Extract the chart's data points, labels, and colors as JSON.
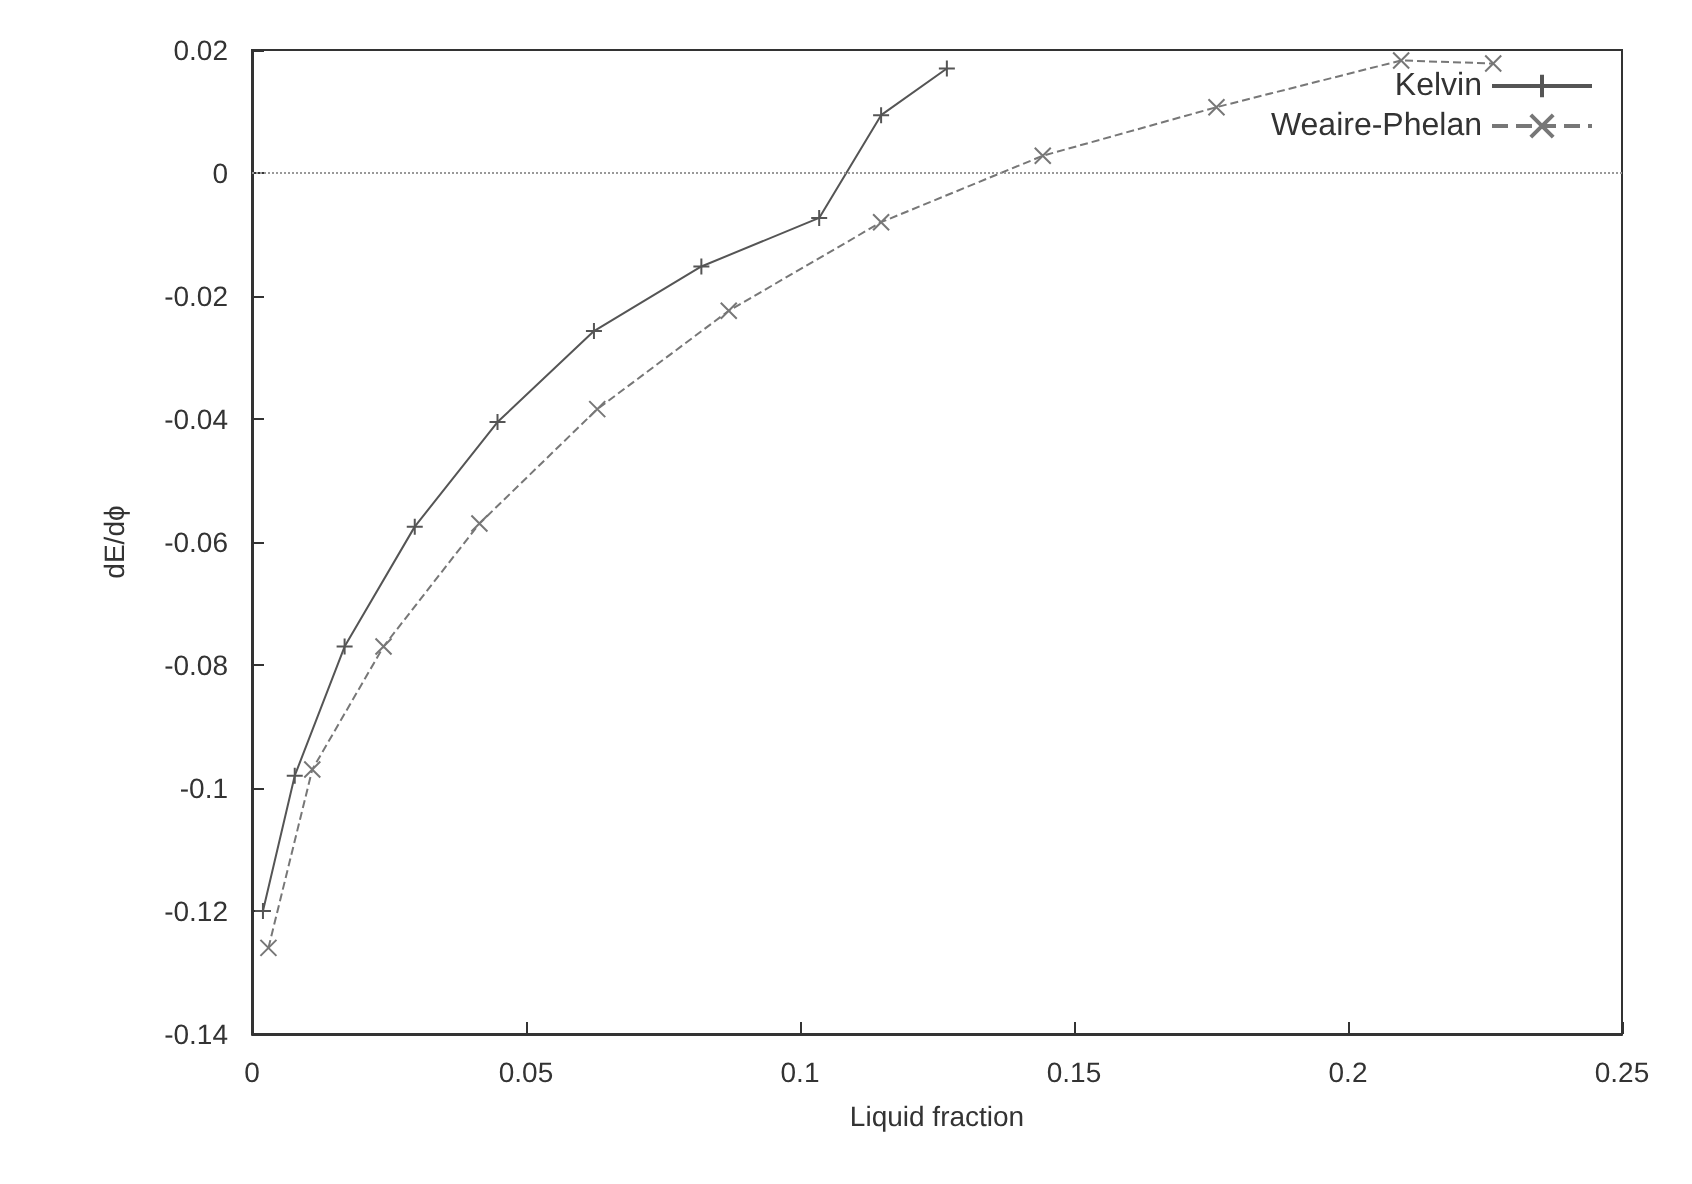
{
  "chart_data": {
    "type": "line",
    "xlabel": "Liquid fraction",
    "ylabel": "dE/dϕ",
    "xlim": [
      0,
      0.25
    ],
    "xticks": [
      0,
      0.05,
      0.1,
      0.15,
      0.2,
      0.25
    ],
    "ylim": [
      -0.14,
      0.02
    ],
    "yticks": [
      -0.14,
      -0.12,
      -0.1,
      -0.08,
      -0.06,
      -0.04,
      -0.02,
      0,
      0.02
    ],
    "grid": false,
    "legend": "top right",
    "series": [
      {
        "name": "Kelvin",
        "color": "#555555",
        "marker": "cross",
        "line_style": "solid",
        "x": [
          0.002,
          0.0078,
          0.0169,
          0.0297,
          0.0448,
          0.0624,
          0.082,
          0.1035,
          0.1148,
          0.1268
        ],
        "values": [
          -0.12,
          -0.098,
          -0.077,
          -0.0575,
          -0.0405,
          -0.0257,
          -0.0152,
          -0.0073,
          0.0094,
          0.017
        ]
      },
      {
        "name": "Weaire-Phelan",
        "color": "#777777",
        "marker": "x",
        "line_style": "dashed",
        "x": [
          0.003,
          0.011,
          0.024,
          0.0415,
          0.063,
          0.087,
          0.1148,
          0.1443,
          0.176,
          0.2097,
          0.2265
        ],
        "values": [
          -0.126,
          -0.097,
          -0.077,
          -0.057,
          -0.0384,
          -0.0224,
          -0.008,
          0.0028,
          0.0107,
          0.0183,
          0.0178
        ]
      }
    ],
    "ref_lines": [
      {
        "axis": "y",
        "value": 0,
        "label": null,
        "color": "#999999",
        "line_style": "dotted"
      }
    ]
  }
}
